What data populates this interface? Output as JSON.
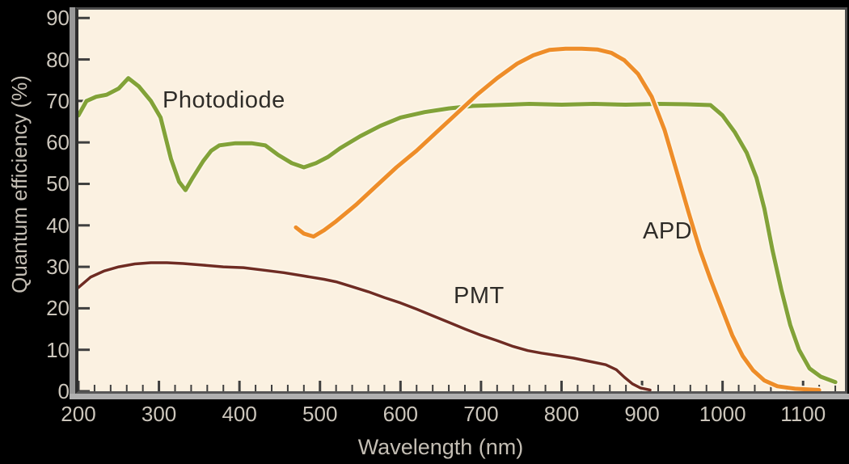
{
  "axes": {
    "x_title": "Wavelength (nm)",
    "y_title": "Quantum efficiency (%)"
  },
  "annotations": {
    "photodiode": "Photodiode",
    "apd": "APD",
    "pmt": "PMT"
  },
  "colors": {
    "plot_background": "#fbf1e1",
    "outer_background": "#000000",
    "frame": "#4d4d4d",
    "tick": "#3f3f3f",
    "tick_label_text": "#ccc6bc",
    "axis_title_text": "#c4beb4",
    "photodiode_curve": "#82a238",
    "apd_curve": "#ee8d29",
    "pmt_curve": "#6f2c23",
    "curve_halo": "#fdf6e8"
  },
  "chart_data": {
    "type": "line",
    "title": "",
    "xlabel": "Wavelength (nm)",
    "ylabel": "Quantum efficiency (%)",
    "xlim": [
      200,
      1152
    ],
    "ylim": [
      0,
      92
    ],
    "x_ticks": [
      200,
      300,
      400,
      500,
      600,
      700,
      800,
      900,
      1000,
      1100
    ],
    "x_minor_step": 20,
    "y_ticks": [
      0,
      10,
      20,
      30,
      40,
      50,
      60,
      70,
      80,
      90
    ],
    "grid": false,
    "legend_position": "inline-annotations",
    "series": [
      {
        "name": "Photodiode",
        "color": "#82a238",
        "width": 5,
        "points": [
          [
            200,
            66.5
          ],
          [
            210,
            70
          ],
          [
            222,
            71
          ],
          [
            235,
            71.5
          ],
          [
            250,
            73
          ],
          [
            262,
            75.5
          ],
          [
            275,
            73.5
          ],
          [
            290,
            70
          ],
          [
            302,
            66
          ],
          [
            315,
            56
          ],
          [
            325,
            50.5
          ],
          [
            333,
            48.5
          ],
          [
            342,
            51.5
          ],
          [
            355,
            55.5
          ],
          [
            365,
            58
          ],
          [
            375,
            59.3
          ],
          [
            395,
            59.8
          ],
          [
            415,
            59.8
          ],
          [
            432,
            59.3
          ],
          [
            448,
            57
          ],
          [
            465,
            55
          ],
          [
            480,
            54
          ],
          [
            495,
            55
          ],
          [
            510,
            56.5
          ],
          [
            525,
            58.6
          ],
          [
            550,
            61.5
          ],
          [
            575,
            64
          ],
          [
            600,
            66
          ],
          [
            630,
            67.3
          ],
          [
            660,
            68.2
          ],
          [
            690,
            68.8
          ],
          [
            720,
            69
          ],
          [
            760,
            69.3
          ],
          [
            800,
            69.1
          ],
          [
            840,
            69.3
          ],
          [
            880,
            69.1
          ],
          [
            920,
            69.3
          ],
          [
            955,
            69.2
          ],
          [
            985,
            69
          ],
          [
            1000,
            66.5
          ],
          [
            1015,
            62.5
          ],
          [
            1030,
            57.5
          ],
          [
            1042,
            51.5
          ],
          [
            1052,
            44
          ],
          [
            1062,
            34
          ],
          [
            1073,
            24.5
          ],
          [
            1084,
            16
          ],
          [
            1095,
            10
          ],
          [
            1108,
            5.5
          ],
          [
            1122,
            3.5
          ],
          [
            1140,
            2.2
          ]
        ]
      },
      {
        "name": "APD",
        "color": "#ee8d29",
        "width": 5,
        "points": [
          [
            470,
            39.5
          ],
          [
            480,
            38
          ],
          [
            492,
            37.3
          ],
          [
            505,
            38.8
          ],
          [
            520,
            41
          ],
          [
            545,
            45
          ],
          [
            570,
            49.5
          ],
          [
            595,
            54
          ],
          [
            620,
            58
          ],
          [
            645,
            62.5
          ],
          [
            670,
            67
          ],
          [
            695,
            71.5
          ],
          [
            720,
            75.5
          ],
          [
            745,
            79
          ],
          [
            765,
            81
          ],
          [
            785,
            82.3
          ],
          [
            805,
            82.6
          ],
          [
            825,
            82.6
          ],
          [
            845,
            82.4
          ],
          [
            862,
            81.6
          ],
          [
            878,
            79.8
          ],
          [
            895,
            76.5
          ],
          [
            912,
            71
          ],
          [
            928,
            63
          ],
          [
            943,
            53
          ],
          [
            958,
            43
          ],
          [
            972,
            34
          ],
          [
            985,
            27
          ],
          [
            998,
            20.5
          ],
          [
            1012,
            13.5
          ],
          [
            1025,
            8.5
          ],
          [
            1038,
            5
          ],
          [
            1052,
            2.6
          ],
          [
            1068,
            1.2
          ],
          [
            1090,
            0.6
          ],
          [
            1120,
            0.3
          ]
        ]
      },
      {
        "name": "PMT",
        "color": "#6f2c23",
        "width": 3.5,
        "points": [
          [
            200,
            25
          ],
          [
            215,
            27.5
          ],
          [
            232,
            29
          ],
          [
            250,
            30
          ],
          [
            270,
            30.7
          ],
          [
            290,
            31
          ],
          [
            310,
            31
          ],
          [
            330,
            30.8
          ],
          [
            355,
            30.4
          ],
          [
            380,
            30
          ],
          [
            405,
            29.8
          ],
          [
            430,
            29.2
          ],
          [
            455,
            28.6
          ],
          [
            480,
            27.8
          ],
          [
            505,
            27
          ],
          [
            520,
            26.4
          ],
          [
            540,
            25.2
          ],
          [
            560,
            24
          ],
          [
            580,
            22.6
          ],
          [
            600,
            21.3
          ],
          [
            620,
            19.8
          ],
          [
            640,
            18.2
          ],
          [
            660,
            16.6
          ],
          [
            680,
            15
          ],
          [
            700,
            13.5
          ],
          [
            720,
            12.2
          ],
          [
            740,
            10.8
          ],
          [
            758,
            9.8
          ],
          [
            775,
            9.2
          ],
          [
            795,
            8.6
          ],
          [
            815,
            8
          ],
          [
            835,
            7.2
          ],
          [
            855,
            6.4
          ],
          [
            868,
            5.2
          ],
          [
            878,
            3.4
          ],
          [
            888,
            1.8
          ],
          [
            898,
            0.8
          ],
          [
            910,
            0.3
          ]
        ]
      }
    ]
  }
}
